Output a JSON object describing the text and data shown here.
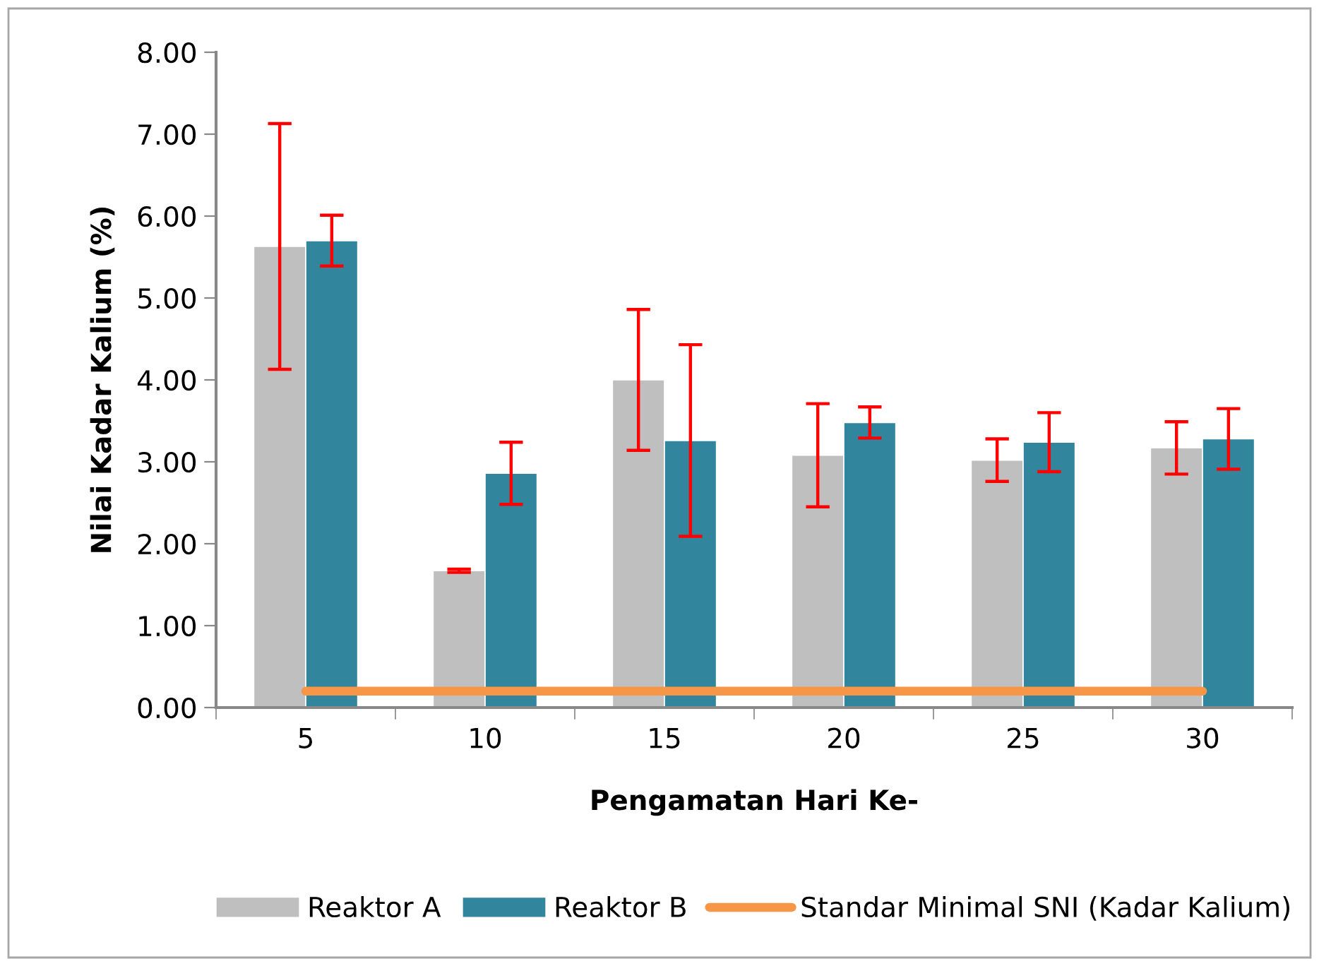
{
  "chart_data": {
    "type": "bar",
    "xlabel": "Pengamatan Hari Ke-",
    "ylabel": "Nilai Kadar Kalium (%)",
    "categories": [
      "5",
      "10",
      "15",
      "20",
      "25",
      "30"
    ],
    "series": [
      {
        "name": "Reaktor A",
        "color": "#bfbfbf",
        "values": [
          5.63,
          1.67,
          4.0,
          3.08,
          3.02,
          3.17
        ],
        "errors": [
          1.5,
          0.02,
          0.86,
          0.63,
          0.26,
          0.32
        ]
      },
      {
        "name": "Reaktor B",
        "color": "#31859c",
        "values": [
          5.7,
          2.86,
          3.26,
          3.48,
          3.24,
          3.28
        ],
        "errors": [
          0.31,
          0.38,
          1.17,
          0.19,
          0.36,
          0.37
        ]
      },
      {
        "name": "Standar Minimal SNI (Kadar Kalium)",
        "type": "line",
        "color": "#f79646",
        "values": [
          0.2,
          0.2,
          0.2,
          0.2,
          0.2,
          0.2
        ]
      }
    ],
    "ylim": [
      0,
      8
    ],
    "yticks": [
      {
        "value": 0,
        "label": "0.00"
      },
      {
        "value": 1,
        "label": "1.00"
      },
      {
        "value": 2,
        "label": "2.00"
      },
      {
        "value": 3,
        "label": "3.00"
      },
      {
        "value": 4,
        "label": "4.00"
      },
      {
        "value": 5,
        "label": "5.00"
      },
      {
        "value": 6,
        "label": "6.00"
      },
      {
        "value": 7,
        "label": "7.00"
      },
      {
        "value": 8,
        "label": "8.00"
      }
    ],
    "grid": false,
    "legend": "bottom",
    "marker": "none",
    "line_style": "solid"
  }
}
